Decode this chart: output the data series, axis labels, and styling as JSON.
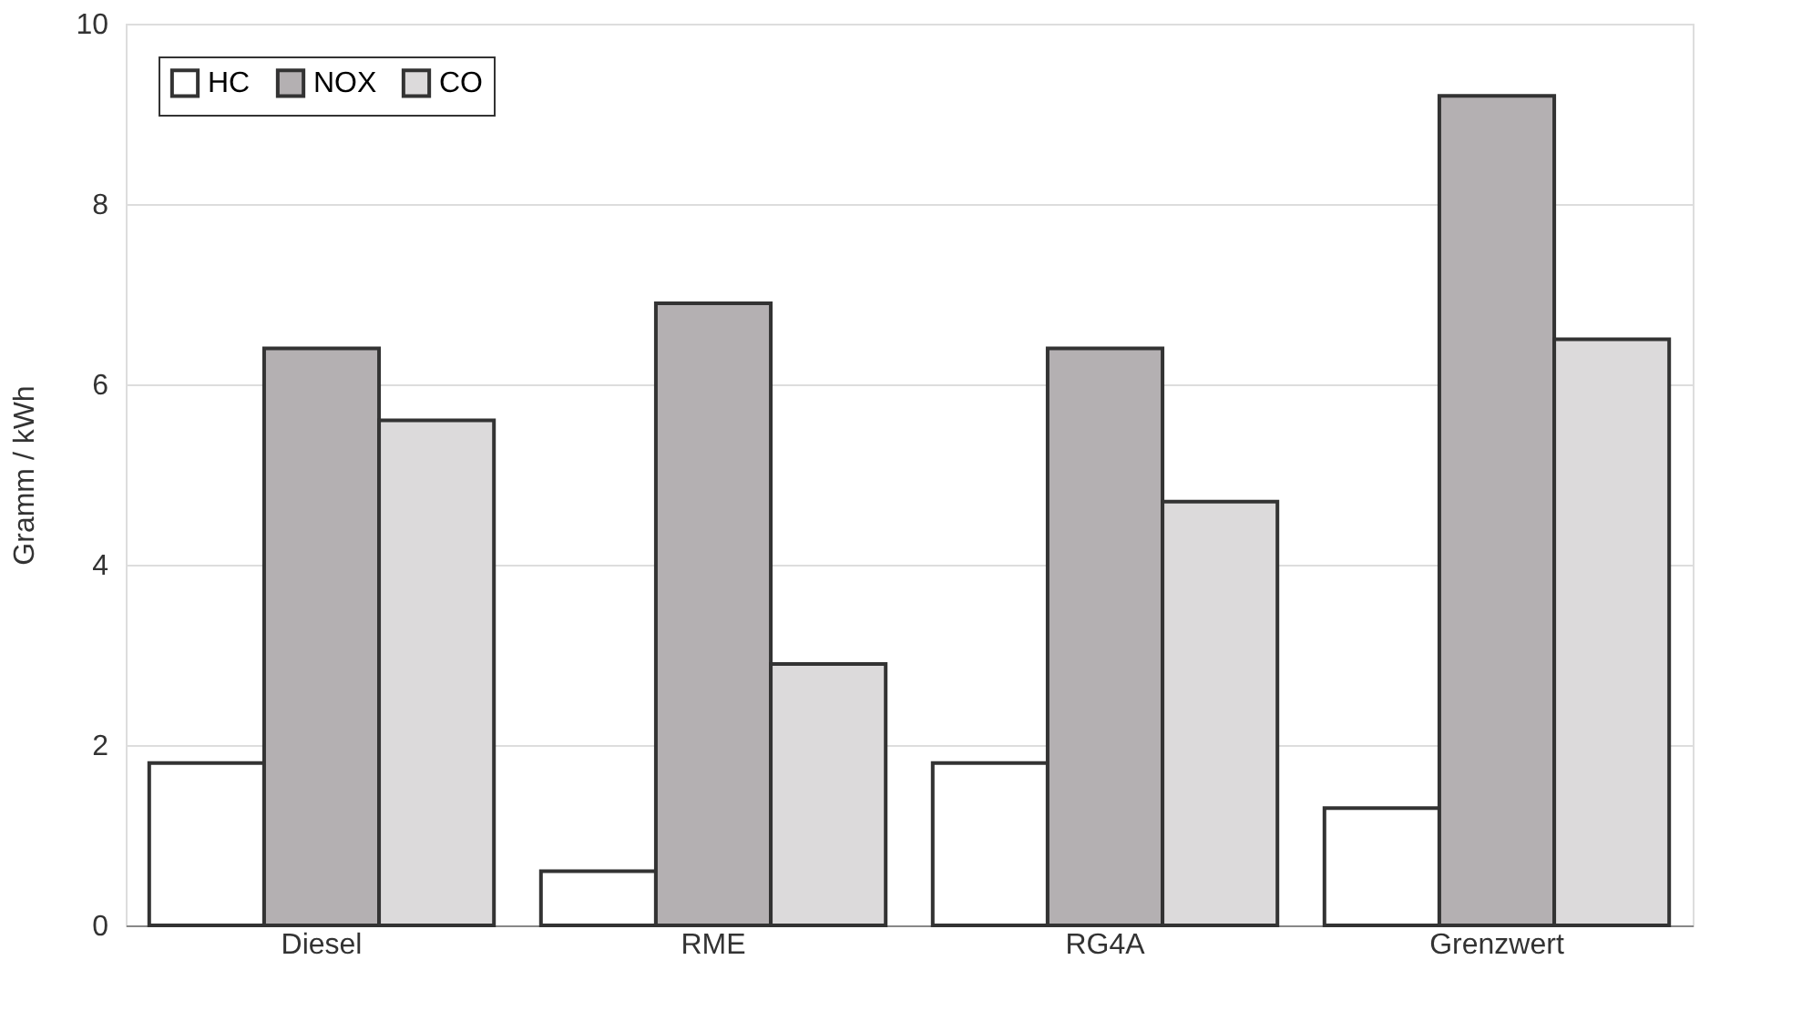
{
  "chart_data": {
    "type": "bar",
    "ylabel": "Gramm / kWh",
    "categories": [
      "Diesel",
      "RME",
      "RG4A",
      "Grenzwert"
    ],
    "series": [
      {
        "name": "HC",
        "color": "#ffffff",
        "values": [
          1.8,
          0.6,
          1.8,
          1.3
        ]
      },
      {
        "name": "NOX",
        "color": "#b4b0b2",
        "values": [
          6.4,
          6.9,
          6.4,
          9.2
        ]
      },
      {
        "name": "CO",
        "color": "#dcdadb",
        "values": [
          5.6,
          2.9,
          4.7,
          6.5
        ]
      }
    ],
    "ylim": [
      0,
      10
    ],
    "yticks": [
      0,
      2,
      4,
      6,
      8,
      10
    ],
    "grid": "y",
    "legend": "top left"
  }
}
